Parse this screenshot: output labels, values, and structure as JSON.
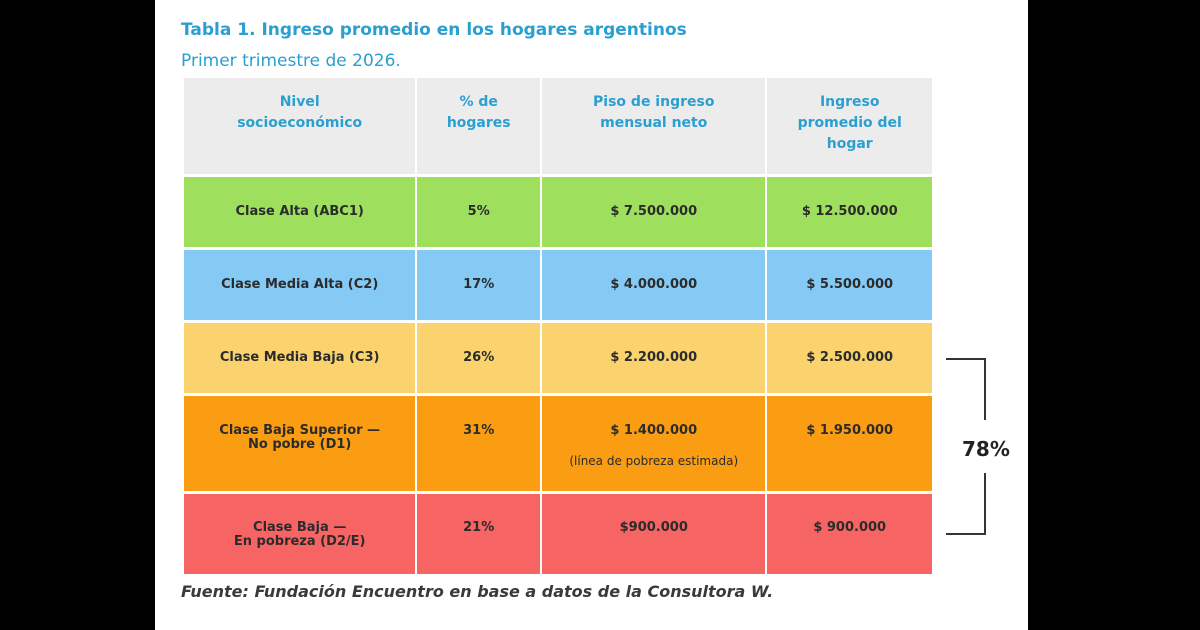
{
  "title": "Tabla 1. Ingreso promedio en los hogares argentinos",
  "subtitle": "Primer trimestre de 2026.",
  "colors": {
    "accent": "#2a9fd0",
    "header_bg": "#ececec",
    "alta": "#9ee05e",
    "media_alta": "#85c9f5",
    "media_baja": "#fbd36e",
    "baja_superior": "#fb9d12",
    "baja": "#f76464"
  },
  "table": {
    "headers": {
      "nivel_1": "Nivel",
      "nivel_2": "socioeconómico",
      "hogares_1": "% de",
      "hogares_2": "hogares",
      "piso_1": "Piso de ingreso",
      "piso_2": "mensual neto",
      "promedio_1": "Ingreso",
      "promedio_2": "promedio del",
      "promedio_3": "hogar"
    },
    "rows": [
      {
        "nivel": "Clase Alta (ABC1)",
        "hogares": "5%",
        "piso": "$ 7.500.000",
        "promedio": "$ 12.500.000"
      },
      {
        "nivel": "Clase Media Alta (C2)",
        "hogares": "17%",
        "piso": "$ 4.000.000",
        "promedio": "$ 5.500.000"
      },
      {
        "nivel": "Clase Media Baja (C3)",
        "hogares": "26%",
        "piso": "$ 2.200.000",
        "promedio": "$ 2.500.000"
      },
      {
        "nivel_1": "Clase Baja Superior —",
        "nivel_2": "No pobre (D1)",
        "hogares": "31%",
        "piso": "$ 1.400.000",
        "piso_note": "(línea de pobreza estimada)",
        "promedio": "$ 1.950.000"
      },
      {
        "nivel_1": "Clase Baja —",
        "nivel_2": "En pobreza (D2/E)",
        "hogares": "21%",
        "piso": "$900.000",
        "promedio": "$ 900.000"
      }
    ]
  },
  "bracket_label": "78%",
  "source": "Fuente: Fundación Encuentro en base a datos de la Consultora W."
}
